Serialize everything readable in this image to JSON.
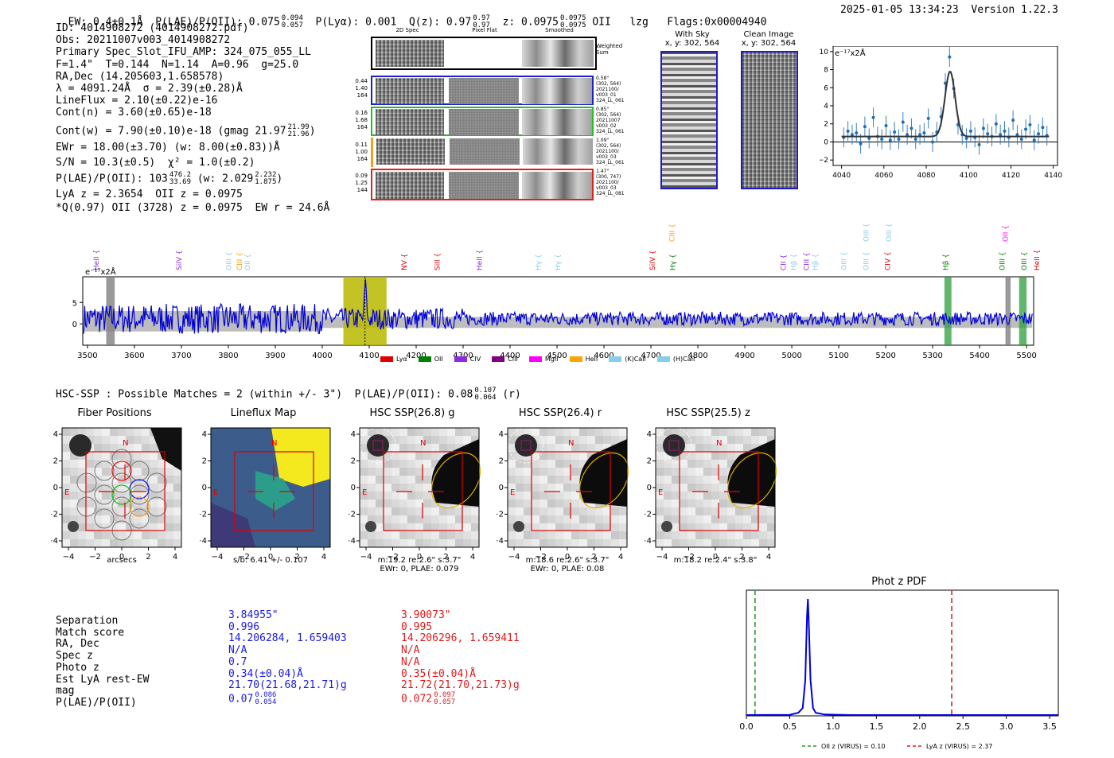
{
  "header": {
    "ew": "EW: 0.4±0.1Å",
    "plae_label": "P(LAE)/P(OII): 0.075",
    "plae_hi": "0.094",
    "plae_lo": "0.057",
    "plya": "P(Lyα): 0.001",
    "qz_label": "Q(z): 0.97",
    "qz_hi": "0.97",
    "qz_lo": "0.97",
    "z_label": "z: 0.0975",
    "z_hi": "0.0975",
    "z_lo": "0.0975",
    "z_line": "OII",
    "lzg": "lzg",
    "flags": "Flags:0x00004940",
    "timestamp": "2025-01-05 13:34:23",
    "version": "Version 1.22.3"
  },
  "info": {
    "lines": [
      "ID: 4014908272 (4014908272.pdf)",
      "Obs: 20211007v003_4014908272",
      "Primary Spec_Slot_IFU_AMP: 324_075_055_LL",
      "F=1.4\"  T=0.144  N=1.14  A=0.96  g=25.0",
      "RA,Dec (14.205603,1.658578)",
      "λ = 4091.24Å  σ = 2.39(±0.28)Å",
      "LineFlux = 2.10(±0.22)e-16",
      "Cont(n) = 3.60(±0.65)e-18"
    ],
    "contw": "Cont(w) = 7.90(±0.10)e-18 (gmag 21.97",
    "contw_hi": "21.99",
    "contw_lo": "21.96",
    "contw_end": ")",
    "ewr": "EWr = 18.00(±3.70) (w: 8.00(±0.83))Å",
    "sn": "S/N = 10.3(±0.5)  χ² = 1.0(±0.2)",
    "plae2": "P(LAE)/P(OII): 103",
    "plae2_hi": "476.2",
    "plae2_lo": "33.69",
    "plae2_w": "(w: 2.029",
    "plae2_w_hi": "2.232",
    "plae2_w_lo": "1.875",
    "plae2_end": ")",
    "lya": "LyA z = 2.3654  OII z = 0.0975",
    "q": "*Q(0.97) OII (3728) z = 0.0975  EW r = 24.6Å"
  },
  "cutouts": {
    "headers": [
      "2D Spec",
      "Pixel Flat",
      "Smoothed"
    ],
    "weighted_label": "Weighted Sum",
    "rows": [
      {
        "left": [
          "0.44",
          "1.40",
          "164"
        ],
        "meta": [
          "0.58\"",
          "(302, 564)",
          "2021100/",
          "v003_01",
          "324_LL_061"
        ],
        "color": "#1f1fc8"
      },
      {
        "left": [
          "0.16",
          "1.68",
          "164"
        ],
        "meta": [
          "0.85\"",
          "(302, 564)",
          "20211007",
          "v003_02",
          "324_LL_061"
        ],
        "color": "#22c022"
      },
      {
        "left": [
          "0.11",
          "1.00",
          "164"
        ],
        "meta": [
          "1.09\"",
          "(302, 564)",
          "2021100/",
          "v003_03",
          "324_LL_061"
        ],
        "color": "#f0a020"
      },
      {
        "left": [
          "0.09",
          "1.25",
          "144"
        ],
        "meta": [
          "1.47\"",
          "(300, 747)",
          "2021100/",
          "v003_03",
          "324_LL_081"
        ],
        "color": "#e02020"
      }
    ]
  },
  "sky": {
    "with_sky_title": "With Sky",
    "with_sky_coords": "x, y: 302, 564",
    "clean_title": "Clean Image",
    "clean_coords": "x, y: 302, 564"
  },
  "zoom_plot": {
    "unit_label": "e⁻¹⁷x2Å",
    "xticks": [
      "4040",
      "4060",
      "4080",
      "4100",
      "4120",
      "4140"
    ],
    "yticks": [
      "10",
      "8",
      "6",
      "4",
      "2",
      "0",
      "−2"
    ]
  },
  "full_spec": {
    "unit_label": "e⁻¹⁷x2Å",
    "xticks": [
      "3500",
      "3600",
      "3700",
      "3800",
      "3900",
      "4000",
      "4100",
      "4200",
      "4300",
      "4400",
      "4500",
      "4600",
      "4700",
      "4800",
      "4900",
      "5000",
      "5100",
      "5200",
      "5300",
      "5400",
      "5500"
    ],
    "yticks": [
      "5",
      "0"
    ],
    "line_labels": [
      {
        "t": "HeII",
        "c": "#8a2be2",
        "w": 3524,
        "tier": 0
      },
      {
        "t": "SiIV",
        "c": "#8a2be2",
        "w": 3700,
        "tier": 0
      },
      {
        "t": "OIII",
        "c": "#87ceeb",
        "w": 3806,
        "tier": 0
      },
      {
        "t": "CIII",
        "c": "#ff9a00",
        "w": 3829,
        "tier": 0
      },
      {
        "t": "OII",
        "c": "#87ceeb",
        "w": 3846,
        "tier": 0
      },
      {
        "t": "NV",
        "c": "#e00000",
        "w": 4180,
        "tier": 0
      },
      {
        "t": "SiII",
        "c": "#e00000",
        "w": 4250,
        "tier": 0
      },
      {
        "t": "HeII",
        "c": "#8a2be2",
        "w": 4340,
        "tier": 0
      },
      {
        "t": "Hγ",
        "c": "#87ceeb",
        "w": 4465,
        "tier": 0
      },
      {
        "t": "Hγ",
        "c": "#87ceeb",
        "w": 4507,
        "tier": 0
      },
      {
        "t": "SiIV",
        "c": "#e00000",
        "w": 4708,
        "tier": 0
      },
      {
        "t": "CIII",
        "c": "#ff9a00",
        "w": 4750,
        "tier": 1
      },
      {
        "t": "Hγ",
        "c": "#008000",
        "w": 4752,
        "tier": 0
      },
      {
        "t": "CII",
        "c": "#8a2be2",
        "w": 4987,
        "tier": 0
      },
      {
        "t": "Hβ",
        "c": "#87ceeb",
        "w": 5009,
        "tier": 0
      },
      {
        "t": "CIII",
        "c": "#8a2be2",
        "w": 5036,
        "tier": 0
      },
      {
        "t": "Hβ",
        "c": "#87ceeb",
        "w": 5055,
        "tier": 0
      },
      {
        "t": "OIII",
        "c": "#87ceeb",
        "w": 5116,
        "tier": 0
      },
      {
        "t": "OIII",
        "c": "#87ceeb",
        "w": 5163,
        "tier": 0
      },
      {
        "t": "OIII",
        "c": "#87ceeb",
        "w": 5163,
        "tier": 1
      },
      {
        "t": "OIII",
        "c": "#87ceeb",
        "w": 5212,
        "tier": 1
      },
      {
        "t": "CIV",
        "c": "#e00000",
        "w": 5209,
        "tier": 0
      },
      {
        "t": "Hβ",
        "c": "#008000",
        "w": 5333,
        "tier": 0
      },
      {
        "t": "OII",
        "c": "#ff00ff",
        "w": 5460,
        "tier": 1
      },
      {
        "t": "OIII",
        "c": "#008000",
        "w": 5453,
        "tier": 0
      },
      {
        "t": "OIII",
        "c": "#008000",
        "w": 5500,
        "tier": 0
      },
      {
        "t": "HeII",
        "c": "#e00000",
        "w": 5527,
        "tier": 0
      }
    ],
    "legend": [
      {
        "label": "Lyα",
        "color": "#e00000"
      },
      {
        "label": "OII",
        "color": "#008000"
      },
      {
        "label": "CIV",
        "color": "#8a2be2"
      },
      {
        "label": "CIII",
        "color": "#800080"
      },
      {
        "label": "MgII",
        "color": "#ff00ff"
      },
      {
        "label": "HeII",
        "color": "#ffa500"
      },
      {
        "label": "(K)CaII",
        "color": "#87ceeb"
      },
      {
        "label": "(H)CaII",
        "color": "#87ceeb"
      }
    ]
  },
  "hsc": {
    "title": "HSC-SSP : Possible Matches = 2 (within +/- 3\")  P(LAE)/P(OII): 0.08",
    "hi": "0.107",
    "lo": "0.064",
    "suffix": "(r)"
  },
  "panels": [
    {
      "title": "Fiber Positions",
      "caption": [
        "arcsecs"
      ]
    },
    {
      "title": "Lineflux Map",
      "caption": [
        "s/b: 6.41 +/- 0.107"
      ]
    },
    {
      "title": "HSC SSP(26.8) g",
      "caption": [
        "m:19.2  re:2.6\"  s:3.7\"",
        "EWr: 0, PLAE: 0.079"
      ]
    },
    {
      "title": "HSC SSP(26.4) r",
      "caption": [
        "m:18.6  re:2.6\"  s:3.7\"",
        "EWr: 0, PLAE: 0.08"
      ]
    },
    {
      "title": "HSC SSP(25.5) z",
      "caption": [
        "m:18.2  re:2.4\"  s:3.8\""
      ]
    }
  ],
  "panel_ticks": {
    "x": [
      "−4",
      "−2",
      "0",
      "2",
      "4"
    ],
    "y": [
      "4",
      "2",
      "0",
      "−2",
      "−4"
    ]
  },
  "compass": {
    "n": "N",
    "e": "E"
  },
  "matches": {
    "labels": [
      "Separation",
      "Match score",
      "RA, Dec",
      "Spec z",
      "Photo z",
      "Est LyA rest-EW",
      "mag",
      "P(LAE)/P(OII)"
    ],
    "blue": [
      "3.84955\"",
      "0.996",
      "14.206284, 1.659403",
      "N/A",
      "0.7",
      "0.34(±0.04)Å",
      "21.70(21.68,21.71)g"
    ],
    "blue_plae": "0.07",
    "blue_hi": "0.086",
    "blue_lo": "0.054",
    "red": [
      "3.90073\"",
      "0.995",
      "14.206296, 1.659411",
      "N/A",
      "N/A",
      "0.35(±0.04)Å",
      "21.72(21.70,21.73)g"
    ],
    "red_plae": "0.072",
    "red_hi": "0.097",
    "red_lo": "0.057"
  },
  "chart_data": [
    {
      "type": "line",
      "title": "Phot z PDF",
      "xlim": [
        0,
        3.6
      ],
      "xticks": [
        "0.0",
        "0.5",
        "1.0",
        "1.5",
        "2.0",
        "2.5",
        "3.0",
        "3.5"
      ],
      "peak_x": 0.71,
      "series": [
        {
          "name": "Phot z PDF",
          "x": [
            0,
            0.5,
            0.6,
            0.65,
            0.68,
            0.7,
            0.71,
            0.72,
            0.74,
            0.77,
            0.8,
            0.9,
            1.2,
            3.6
          ],
          "y": [
            0,
            0.002,
            0.02,
            0.06,
            0.3,
            0.85,
            1.0,
            0.8,
            0.3,
            0.06,
            0.02,
            0.005,
            0,
            0
          ]
        }
      ],
      "vlines": [
        {
          "label": "OII z (VIRUS) = 0.10",
          "x": 0.1,
          "color": "#2a9a2a"
        },
        {
          "label": "LyA z (VIRUS) = 2.37",
          "x": 2.37,
          "color": "#e02020"
        }
      ]
    },
    {
      "type": "scatter",
      "title": "Emission line zoom",
      "ylabel": "e⁻¹⁷x2Å",
      "xlim": [
        4036,
        4142
      ],
      "ylim": [
        -2.6,
        10.6
      ],
      "points_x": [
        4041,
        4043,
        4045,
        4047,
        4049,
        4051,
        4053,
        4055,
        4057,
        4059,
        4061,
        4063,
        4065,
        4067,
        4069,
        4071,
        4073,
        4075,
        4077,
        4079,
        4081,
        4083,
        4085,
        4087,
        4089,
        4091,
        4093,
        4095,
        4097,
        4099,
        4101,
        4103,
        4105,
        4107,
        4109,
        4111,
        4113,
        4115,
        4117,
        4119,
        4121,
        4123,
        4125,
        4127,
        4129,
        4131,
        4133,
        4135,
        4137
      ],
      "points_y": [
        0.5,
        1.2,
        0.8,
        1.0,
        -0.2,
        1.7,
        0.4,
        2.7,
        0.6,
        0.3,
        1.8,
        0.2,
        1.1,
        0.3,
        2.2,
        0.8,
        1.5,
        0.3,
        0.8,
        1.0,
        2.6,
        0.0,
        1.1,
        2.8,
        6.5,
        9.4,
        5.9,
        1.9,
        0.8,
        0.4,
        1.2,
        0.5,
        -0.3,
        1.5,
        0.9,
        0.6,
        2.0,
        0.8,
        1.2,
        0.5,
        2.4,
        0.8,
        0.3,
        1.4,
        1.9,
        0.2,
        0.9,
        1.6,
        0.7
      ],
      "model": {
        "center": 4091.24,
        "sigma": 2.39,
        "amp": 7.2,
        "continuum": 0.6
      }
    }
  ]
}
